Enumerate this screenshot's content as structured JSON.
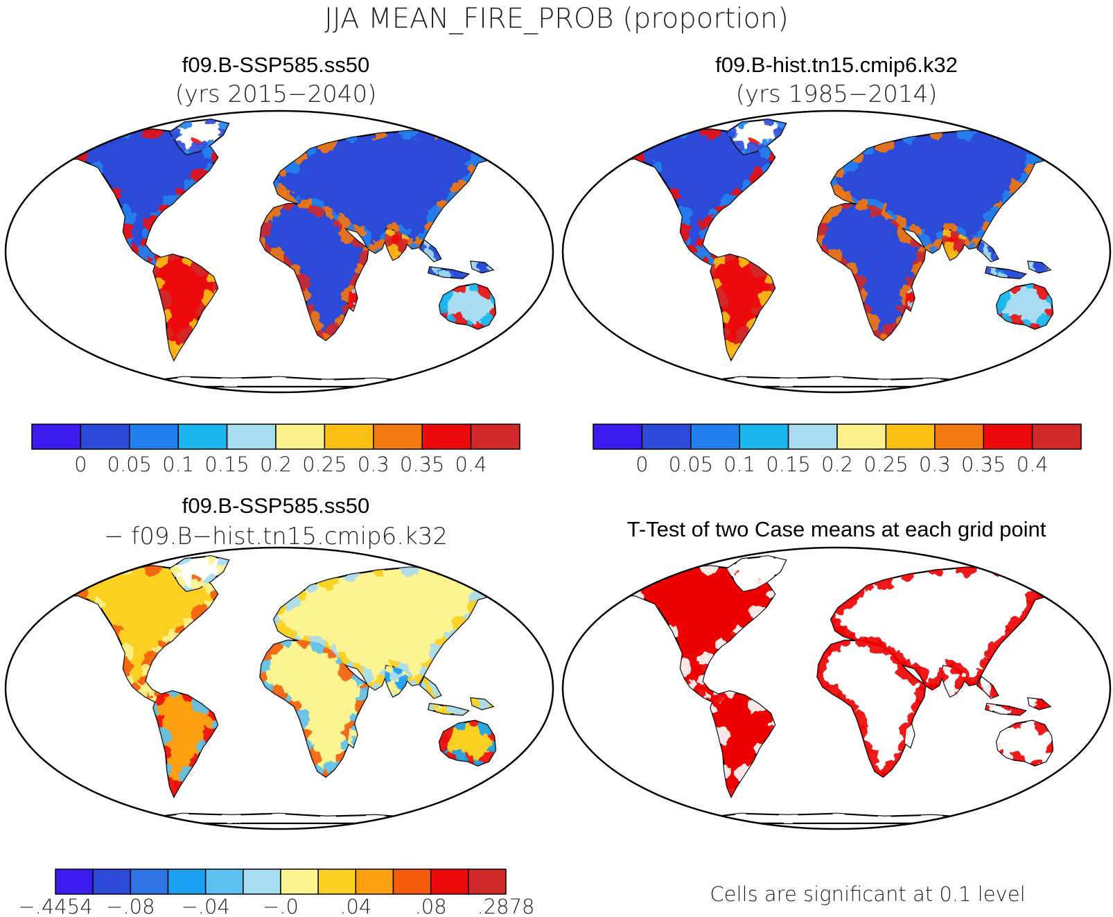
{
  "figure": {
    "title": "JJA MEAN_FIRE_PROB (proportion)"
  },
  "panels": [
    {
      "id": "top-left",
      "title": "f09.B-SSP585.ss50",
      "subtitle": "(yrs 2015−2040)",
      "kind": "field",
      "palette": "fire"
    },
    {
      "id": "top-right",
      "title": "f09.B-hist.tn15.cmip6.k32",
      "subtitle": "(yrs 1985−2014)",
      "kind": "field",
      "palette": "fire"
    },
    {
      "id": "bottom-left",
      "title": "f09.B-SSP585.ss50",
      "subtitle": "− f09.B−hist.tn15.cmip6.k32",
      "kind": "difference",
      "palette": "diff"
    },
    {
      "id": "bottom-right",
      "title": "T-Test of two Case means at each grid point",
      "subtitle": "",
      "kind": "significance",
      "note": "Cells are significant at 0.1 level",
      "significant_color": "#ee0000"
    }
  ],
  "colorbars": {
    "fire": {
      "colors": [
        "#3b1cf0",
        "#2b4ad8",
        "#2181ee",
        "#19b6f0",
        "#a8dcf0",
        "#fcf08c",
        "#fcc014",
        "#f47810",
        "#ec0a0a",
        "#d22a2a"
      ],
      "labels": [
        "0",
        "0.05",
        "0.1",
        "0.15",
        "0.2",
        "0.25",
        "0.3",
        "0.35",
        "0.4"
      ]
    },
    "diff": {
      "colors": [
        "#3b1cf0",
        "#2b4ad8",
        "#2f74e4",
        "#19a0f0",
        "#5cc0f0",
        "#a8dcf0",
        "#fcf490",
        "#fcd020",
        "#fca010",
        "#f45c0c",
        "#ec0a0a",
        "#d22a2a"
      ],
      "labels": [
        "−.4454",
        "−.08",
        "−.04",
        "−.0",
        ".04",
        ".08",
        ".2878"
      ]
    }
  }
}
